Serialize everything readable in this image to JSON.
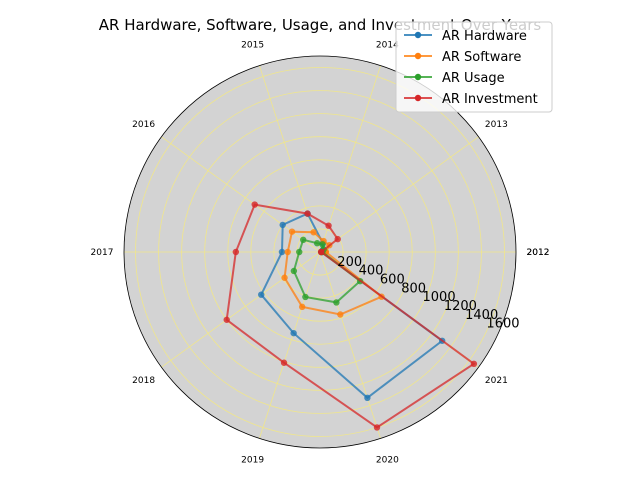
{
  "chart_data": {
    "type": "radar",
    "title": "AR Hardware, Software, Usage, and Investment Over Years",
    "categories": [
      "2012",
      "2013",
      "2014",
      "2015",
      "2016",
      "2017",
      "2018",
      "2019",
      "2020",
      "2021",
      "2012"
    ],
    "radial_ticks": [
      200,
      400,
      600,
      800,
      1000,
      1200,
      1400,
      1600
    ],
    "rlim": [
      0,
      1700
    ],
    "grid": true,
    "legend_position": "top-right",
    "background_color": "#d3d3d3",
    "grid_color": "#f0e68c",
    "series": [
      {
        "name": "AR Hardware",
        "color": "#1f77b4",
        "values": [
          10,
          30,
          80,
          350,
          400,
          330,
          630,
          740,
          1330,
          1310,
          10
        ]
      },
      {
        "name": "AR Software",
        "color": "#ff7f0e",
        "values": [
          50,
          100,
          100,
          180,
          300,
          280,
          380,
          500,
          570,
          660,
          50
        ]
      },
      {
        "name": "AR Usage",
        "color": "#2ca02c",
        "values": [
          20,
          40,
          70,
          80,
          180,
          180,
          280,
          410,
          460,
          430,
          20
        ]
      },
      {
        "name": "AR Investment",
        "color": "#d62728",
        "values": [
          10,
          190,
          240,
          350,
          700,
          730,
          1000,
          1010,
          1600,
          1650,
          10
        ]
      }
    ]
  }
}
